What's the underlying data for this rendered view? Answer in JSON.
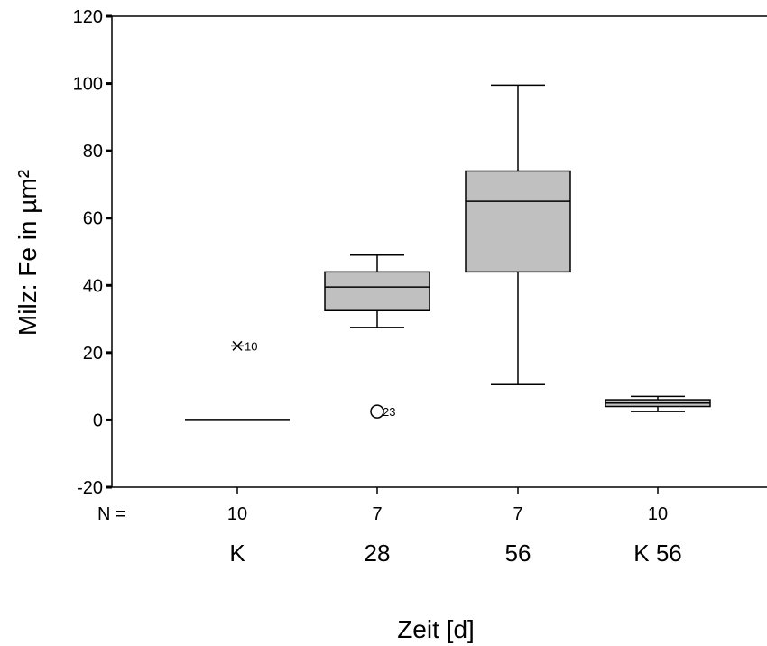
{
  "chart_data": {
    "type": "boxplot",
    "ylabel": "Milz: Fe in µm²",
    "xlabel": "Zeit [d]",
    "ylim": [
      -20,
      120
    ],
    "yticks": [
      -20,
      0,
      20,
      40,
      60,
      80,
      100,
      120
    ],
    "n_prefix": "N =",
    "box_color": "#c0c0c0",
    "categories": [
      "K",
      "28",
      "56",
      "K 56"
    ],
    "n_values": [
      "10",
      "7",
      "7",
      "10"
    ],
    "boxes": [
      {
        "category": "K",
        "n": "10",
        "whisker_low": 0,
        "q1": 0,
        "median": 0,
        "q3": 0,
        "whisker_high": 0,
        "outliers": [
          {
            "value": 22,
            "label": "10",
            "marker": "extreme"
          }
        ]
      },
      {
        "category": "28",
        "n": "7",
        "whisker_low": 27.5,
        "q1": 32.5,
        "median": 39.5,
        "q3": 44,
        "whisker_high": 49,
        "outliers": [
          {
            "value": 2.5,
            "label": "23",
            "marker": "outlier"
          }
        ]
      },
      {
        "category": "56",
        "n": "7",
        "whisker_low": 10.5,
        "q1": 44,
        "median": 65,
        "q3": 74,
        "whisker_high": 99.5,
        "outliers": []
      },
      {
        "category": "K 56",
        "n": "10",
        "whisker_low": 2.5,
        "q1": 4,
        "median": 5,
        "q3": 6,
        "whisker_high": 7,
        "outliers": []
      }
    ]
  }
}
